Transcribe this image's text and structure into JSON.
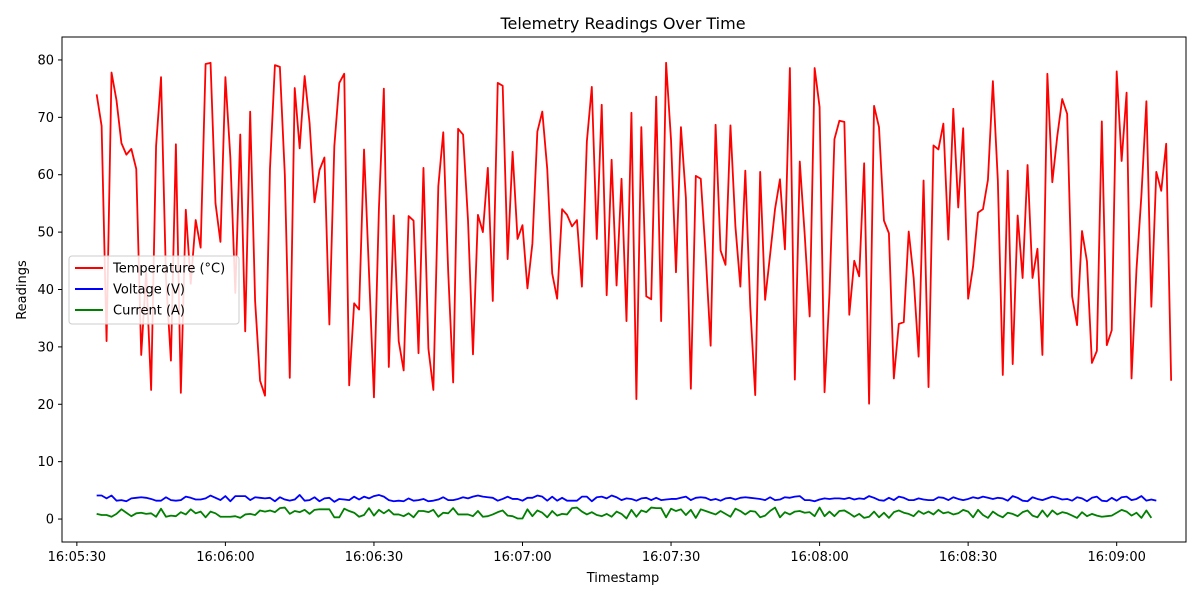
{
  "chart_data": {
    "type": "line",
    "title": "Telemetry Readings Over Time",
    "xlabel": "Timestamp",
    "ylabel": "Readings",
    "x_start": "16:05:34",
    "x_step_seconds": 1,
    "xlim": [
      "16:05:27",
      "16:09:14"
    ],
    "ylim": [
      -4,
      84
    ],
    "xticks": [
      "16:05:30",
      "16:06:00",
      "16:06:30",
      "16:07:00",
      "16:07:30",
      "16:08:00",
      "16:08:30",
      "16:09:00"
    ],
    "yticks": [
      0,
      10,
      20,
      30,
      40,
      50,
      60,
      70,
      80
    ],
    "legend_position": "center-left",
    "grid": false,
    "series": [
      {
        "name": "Temperature (°C)",
        "color": "#ff0000",
        "values": [
          74,
          68.5,
          31,
          77.8,
          73,
          65.5,
          63.5,
          64.5,
          61,
          28.6,
          43,
          22.5,
          65,
          77,
          42,
          27.6,
          65.3,
          22,
          53.9,
          41,
          52.1,
          47.3,
          79.3,
          79.5,
          55,
          48.3,
          77,
          63,
          39.4,
          67,
          32.7,
          71,
          38,
          24.1,
          21.5,
          61,
          79.1,
          78.8,
          60,
          24.6,
          75.1,
          64.6,
          77.2,
          69,
          55.2,
          60.8,
          63,
          33.9,
          65,
          76,
          77.6,
          23.3,
          37.6,
          36.5,
          64.4,
          43,
          21.2,
          54,
          75,
          26.5,
          52.9,
          31,
          25.9,
          52.8,
          52,
          28.9,
          61.2,
          29.7,
          22.5,
          58,
          67.4,
          43,
          23.8,
          68,
          67,
          52,
          28.7,
          53,
          50,
          61.2,
          38,
          76,
          75.5,
          45.3,
          64,
          48.8,
          51.2,
          40.2,
          48,
          67.5,
          71,
          61,
          42.8,
          38.4,
          54,
          53,
          51,
          52.1,
          40.5,
          65.8,
          75.3,
          48.8,
          72.2,
          39,
          62.6,
          40.7,
          59.3,
          34.5,
          70.8,
          20.9,
          68.3,
          38.8,
          38.3,
          73.6,
          34.5,
          79.5,
          66,
          43,
          68.3,
          56,
          22.7,
          59.8,
          59.3,
          46,
          30.2,
          68.7,
          46.8,
          44.3,
          68.6,
          51,
          40.5,
          60.7,
          37,
          21.6,
          60.5,
          38.2,
          46,
          54,
          59.2,
          47,
          78.6,
          24.3,
          62.3,
          49.5,
          35.3,
          78.6,
          71.8,
          22.1,
          39.3,
          66.2,
          69.4,
          69.2,
          35.6,
          45,
          42.3,
          62,
          20.1,
          72,
          68.3,
          52,
          49.8,
          24.5,
          34,
          34.3,
          50.1,
          42,
          28.3,
          59,
          23,
          65.1,
          64.4,
          68.9,
          48.7,
          71.5,
          54.3,
          68.1,
          38.4,
          44,
          53.4,
          54,
          59.1,
          76.3,
          59,
          25.1,
          60.7,
          27,
          52.9,
          42,
          61.7,
          42,
          47.1,
          28.6,
          77.6,
          58.7,
          66.7,
          73.2,
          70.6,
          38.8,
          33.8,
          50.2,
          44.9,
          27.2,
          29.3,
          69.3,
          30.3,
          32.9,
          78,
          62.4,
          74.3,
          24.5,
          43.5,
          56.5,
          72.8,
          37,
          60.5,
          57.2,
          65.4,
          24.1
        ]
      },
      {
        "name": "Voltage (V)",
        "color": "#0000ff",
        "values": [
          4.1,
          4.1,
          3.6,
          4.1,
          3.2,
          3.3,
          3.1,
          3.6,
          3.7,
          3.8,
          3.7,
          3.5,
          3.2,
          3.2,
          3.8,
          3.3,
          3.2,
          3.3,
          3.9,
          3.7,
          3.4,
          3.4,
          3.6,
          4.1,
          3.7,
          3.3,
          4,
          3.1,
          4,
          4,
          4,
          3.3,
          3.8,
          3.7,
          3.6,
          3.7,
          3.1,
          3.8,
          3.4,
          3.2,
          3.4,
          4.2,
          3.2,
          3.3,
          3.8,
          3.1,
          3.6,
          3.7,
          3,
          3.5,
          3.4,
          3.3,
          3.9,
          3.4,
          3.9,
          3.6,
          4,
          4.2,
          3.9,
          3.3,
          3.1,
          3.2,
          3.1,
          3.6,
          3.2,
          3.3,
          3.5,
          3.1,
          3.2,
          3.4,
          3.8,
          3.3,
          3.3,
          3.5,
          3.8,
          3.6,
          3.9,
          4.1,
          3.9,
          3.8,
          3.7,
          3.2,
          3.5,
          3.9,
          3.5,
          3.5,
          3.2,
          3.7,
          3.7,
          4.1,
          3.9,
          3.2,
          3.9,
          3.2,
          3.7,
          3.2,
          3.2,
          3.2,
          3.9,
          3.9,
          3.1,
          3.8,
          3.9,
          3.6,
          4.1,
          3.8,
          3.3,
          3.6,
          3.5,
          3.2,
          3.6,
          3.7,
          3.3,
          3.7,
          3.3,
          3.4,
          3.5,
          3.5,
          3.7,
          3.9,
          3.3,
          3.7,
          3.8,
          3.7,
          3.3,
          3.5,
          3.2,
          3.6,
          3.7,
          3.4,
          3.7,
          3.8,
          3.7,
          3.6,
          3.5,
          3.3,
          3.8,
          3.3,
          3.4,
          3.8,
          3.7,
          3.9,
          4,
          3.3,
          3.3,
          3.1,
          3.4,
          3.6,
          3.5,
          3.6,
          3.6,
          3.5,
          3.7,
          3.4,
          3.6,
          3.5,
          4,
          3.7,
          3.3,
          3.2,
          3.7,
          3.3,
          3.9,
          3.7,
          3.3,
          3.3,
          3.6,
          3.4,
          3.3,
          3.3,
          3.8,
          3.7,
          3.3,
          3.8,
          3.5,
          3.3,
          3.5,
          3.8,
          3.6,
          3.9,
          3.7,
          3.5,
          3.7,
          3.6,
          3.2,
          4,
          3.7,
          3.2,
          3.1,
          3.8,
          3.5,
          3.3,
          3.6,
          3.9,
          3.7,
          3.4,
          3.5,
          3.2,
          3.8,
          3.6,
          3.1,
          3.7,
          3.9,
          3.2,
          3.1,
          3.7,
          3.2,
          3.8,
          3.9,
          3.3,
          3.5,
          4,
          3.2,
          3.4,
          3.2
        ]
      },
      {
        "name": "Current (A)",
        "color": "#008000",
        "values": [
          0.9,
          0.7,
          0.7,
          0.4,
          0.9,
          1.7,
          1.1,
          0.5,
          1,
          1.1,
          0.9,
          1,
          0.4,
          1.8,
          0.4,
          0.6,
          0.5,
          1.2,
          0.8,
          1.7,
          1,
          1.3,
          0.3,
          1.3,
          1,
          0.4,
          0.4,
          0.4,
          0.5,
          0.2,
          0.8,
          0.9,
          0.7,
          1.5,
          1.3,
          1.5,
          1.2,
          1.9,
          2,
          0.9,
          1.4,
          1.2,
          1.6,
          0.9,
          1.6,
          1.7,
          1.7,
          1.7,
          0.3,
          0.3,
          1.8,
          1.4,
          1.1,
          0.4,
          0.7,
          1.9,
          0.6,
          1.6,
          1,
          1.6,
          0.8,
          0.8,
          0.5,
          1,
          0.3,
          1.4,
          1.4,
          1.2,
          1.6,
          0.4,
          1.1,
          1,
          1.9,
          0.8,
          0.8,
          0.8,
          0.5,
          1.4,
          0.4,
          0.5,
          0.8,
          1.2,
          1.5,
          0.6,
          0.5,
          0.1,
          0.1,
          1.7,
          0.5,
          1.5,
          1.1,
          0.3,
          1.4,
          0.6,
          0.9,
          0.8,
          1.9,
          2,
          1.3,
          0.8,
          1.2,
          0.7,
          0.5,
          0.9,
          0.4,
          1.3,
          0.9,
          0.1,
          1.6,
          0.4,
          1.5,
          1.2,
          2,
          1.9,
          1.9,
          0.3,
          1.8,
          1.4,
          1.7,
          0.7,
          1.6,
          0.2,
          1.7,
          1.4,
          1.1,
          0.8,
          1.4,
          0.9,
          0.4,
          1.8,
          1.4,
          0.8,
          1.4,
          1.3,
          0.3,
          0.6,
          1.4,
          2,
          0.3,
          1.2,
          0.8,
          1.3,
          1.4,
          1.1,
          1.2,
          0.5,
          2,
          0.5,
          1.3,
          0.5,
          1.4,
          1.5,
          1,
          0.4,
          0.9,
          0.2,
          0.4,
          1.3,
          0.3,
          1.1,
          0.2,
          1.2,
          1.5,
          1.1,
          0.9,
          0.5,
          1.4,
          0.9,
          1.3,
          0.8,
          1.6,
          1,
          1.2,
          0.8,
          1,
          1.6,
          1.3,
          0.3,
          1.6,
          0.7,
          0.2,
          1.3,
          0.7,
          0.3,
          1.1,
          0.9,
          0.5,
          1.2,
          1.5,
          0.6,
          0.3,
          1.5,
          0.4,
          1.5,
          0.8,
          1.2,
          1,
          0.6,
          0.2,
          1.2,
          0.5,
          0.9,
          0.6,
          0.4,
          0.5,
          0.6,
          1.1,
          1.6,
          1.3,
          0.6,
          1.1,
          0.2,
          1.5,
          0.2
        ]
      }
    ]
  }
}
